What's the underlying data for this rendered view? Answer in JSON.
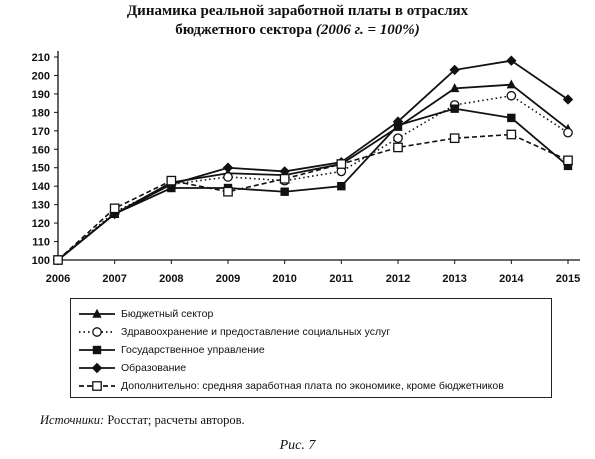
{
  "title": {
    "line1": "Динамика реальной заработной платы в отраслях",
    "line2": "бюджетного сектора",
    "line2_italic": "(2006 г. = 100%)"
  },
  "chart_data": {
    "type": "line",
    "title": "Динамика реальной заработной платы в отраслях бюджетного сектора (2006 г. = 100%)",
    "xlabel": "",
    "ylabel": "",
    "x": [
      "2006",
      "2007",
      "2008",
      "2009",
      "2010",
      "2011",
      "2012",
      "2013",
      "2014",
      "2015"
    ],
    "ylim": [
      100,
      210
    ],
    "yticks": [
      "100",
      "110",
      "120",
      "130",
      "140",
      "150",
      "160",
      "170",
      "180",
      "190",
      "200",
      "210"
    ],
    "grid": false,
    "legend_position": "bottom",
    "series": [
      {
        "name": "Бюджетный сектор",
        "marker": "triangle",
        "line": "solid",
        "values": [
          100,
          125,
          142,
          147,
          146,
          152,
          172,
          193,
          195,
          171
        ]
      },
      {
        "name": "Здравоохранение и предоставление социальных услуг",
        "marker": "open-circle",
        "line": "dotted",
        "values": [
          100,
          126,
          141,
          145,
          143,
          148,
          166,
          184,
          189,
          169
        ]
      },
      {
        "name": "Государственное управление",
        "marker": "filled-square",
        "line": "solid",
        "values": [
          100,
          125,
          139,
          139,
          137,
          140,
          173,
          182,
          177,
          151
        ]
      },
      {
        "name": "Образование",
        "marker": "filled-diamond",
        "line": "solid",
        "values": [
          100,
          125,
          141,
          150,
          148,
          153,
          175,
          203,
          208,
          187
        ]
      },
      {
        "name": "Дополнительно: средняя заработная плата по экономике, кроме бюджетников",
        "marker": "open-square",
        "line": "dashed",
        "values": [
          100,
          128,
          143,
          137,
          144,
          152,
          161,
          166,
          168,
          154
        ]
      }
    ],
    "colors": {
      "ink": "#111111"
    }
  },
  "source": {
    "label": "Источники:",
    "text": "Росстат; расчеты авторов."
  },
  "caption": "Рис. 7"
}
